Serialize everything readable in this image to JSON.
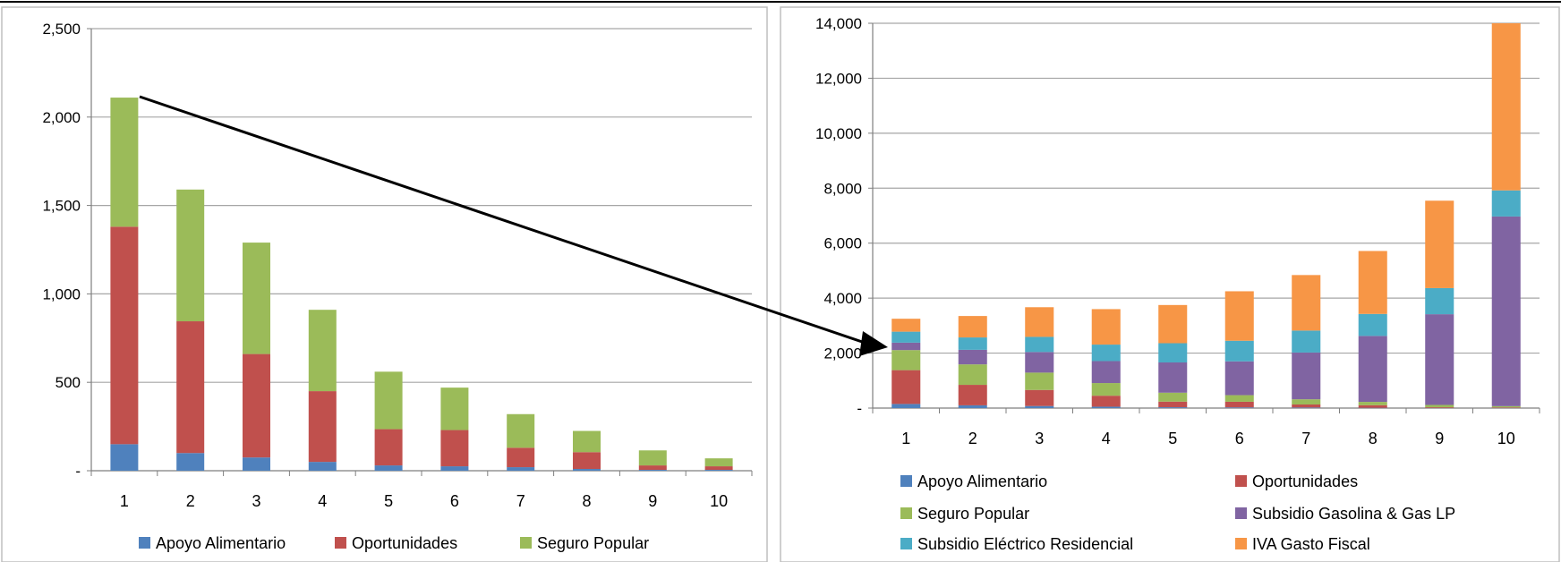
{
  "colors": {
    "apoyo": "#4f81bd",
    "oportunidades": "#c0504d",
    "seguro": "#9bbb59",
    "gasolina": "#8064a2",
    "electrico": "#4bacc6",
    "iva": "#f79646",
    "grid": "#a6a6a6",
    "axis": "#7f7f7f"
  },
  "chart_data": [
    {
      "type": "bar",
      "stacked": true,
      "categories": [
        "1",
        "2",
        "3",
        "4",
        "5",
        "6",
        "7",
        "8",
        "9",
        "10"
      ],
      "ylim": [
        0,
        2500
      ],
      "yticks": [
        "-",
        "500",
        "1,000",
        "1,500",
        "2,000",
        "2,500"
      ],
      "ytick_values": [
        0,
        500,
        1000,
        1500,
        2000,
        2500
      ],
      "grid": true,
      "legend_position": "bottom",
      "series": [
        {
          "name": "Apoyo Alimentario",
          "color_key": "apoyo",
          "values": [
            150,
            100,
            75,
            50,
            30,
            25,
            20,
            10,
            5,
            5
          ]
        },
        {
          "name": "Oportunidades",
          "color_key": "oportunidades",
          "values": [
            1230,
            745,
            585,
            400,
            205,
            205,
            110,
            95,
            25,
            20
          ]
        },
        {
          "name": "Seguro Popular",
          "color_key": "seguro",
          "values": [
            730,
            745,
            630,
            460,
            325,
            240,
            190,
            120,
            85,
            45
          ]
        }
      ]
    },
    {
      "type": "bar",
      "stacked": true,
      "categories": [
        "1",
        "2",
        "3",
        "4",
        "5",
        "6",
        "7",
        "8",
        "9",
        "10"
      ],
      "ylim": [
        0,
        14000
      ],
      "yticks": [
        "-",
        "2,000",
        "4,000",
        "6,000",
        "8,000",
        "10,000",
        "12,000",
        "14,000"
      ],
      "ytick_values": [
        0,
        2000,
        4000,
        6000,
        8000,
        10000,
        12000,
        14000
      ],
      "grid": true,
      "legend_position": "bottom",
      "series": [
        {
          "name": "Apoyo Alimentario",
          "color_key": "apoyo",
          "values": [
            150,
            100,
            75,
            50,
            30,
            25,
            20,
            10,
            5,
            5
          ]
        },
        {
          "name": "Oportunidades",
          "color_key": "oportunidades",
          "values": [
            1230,
            745,
            585,
            400,
            205,
            205,
            110,
            95,
            25,
            20
          ]
        },
        {
          "name": "Seguro Popular",
          "color_key": "seguro",
          "values": [
            730,
            745,
            630,
            460,
            325,
            240,
            190,
            120,
            85,
            45
          ]
        },
        {
          "name": "Subsidio Gasolina & Gas LP",
          "color_key": "gasolina",
          "values": [
            270,
            530,
            750,
            800,
            1100,
            1230,
            1700,
            2400,
            3300,
            6900
          ]
        },
        {
          "name": "Subsidio Eléctrico Residencial",
          "color_key": "electrico",
          "values": [
            400,
            450,
            550,
            600,
            700,
            750,
            800,
            800,
            950,
            950
          ]
        },
        {
          "name": "IVA Gasto Fiscal",
          "color_key": "iva",
          "values": [
            470,
            780,
            1080,
            1290,
            1390,
            1800,
            2020,
            2290,
            3180,
            6080
          ]
        }
      ]
    }
  ]
}
